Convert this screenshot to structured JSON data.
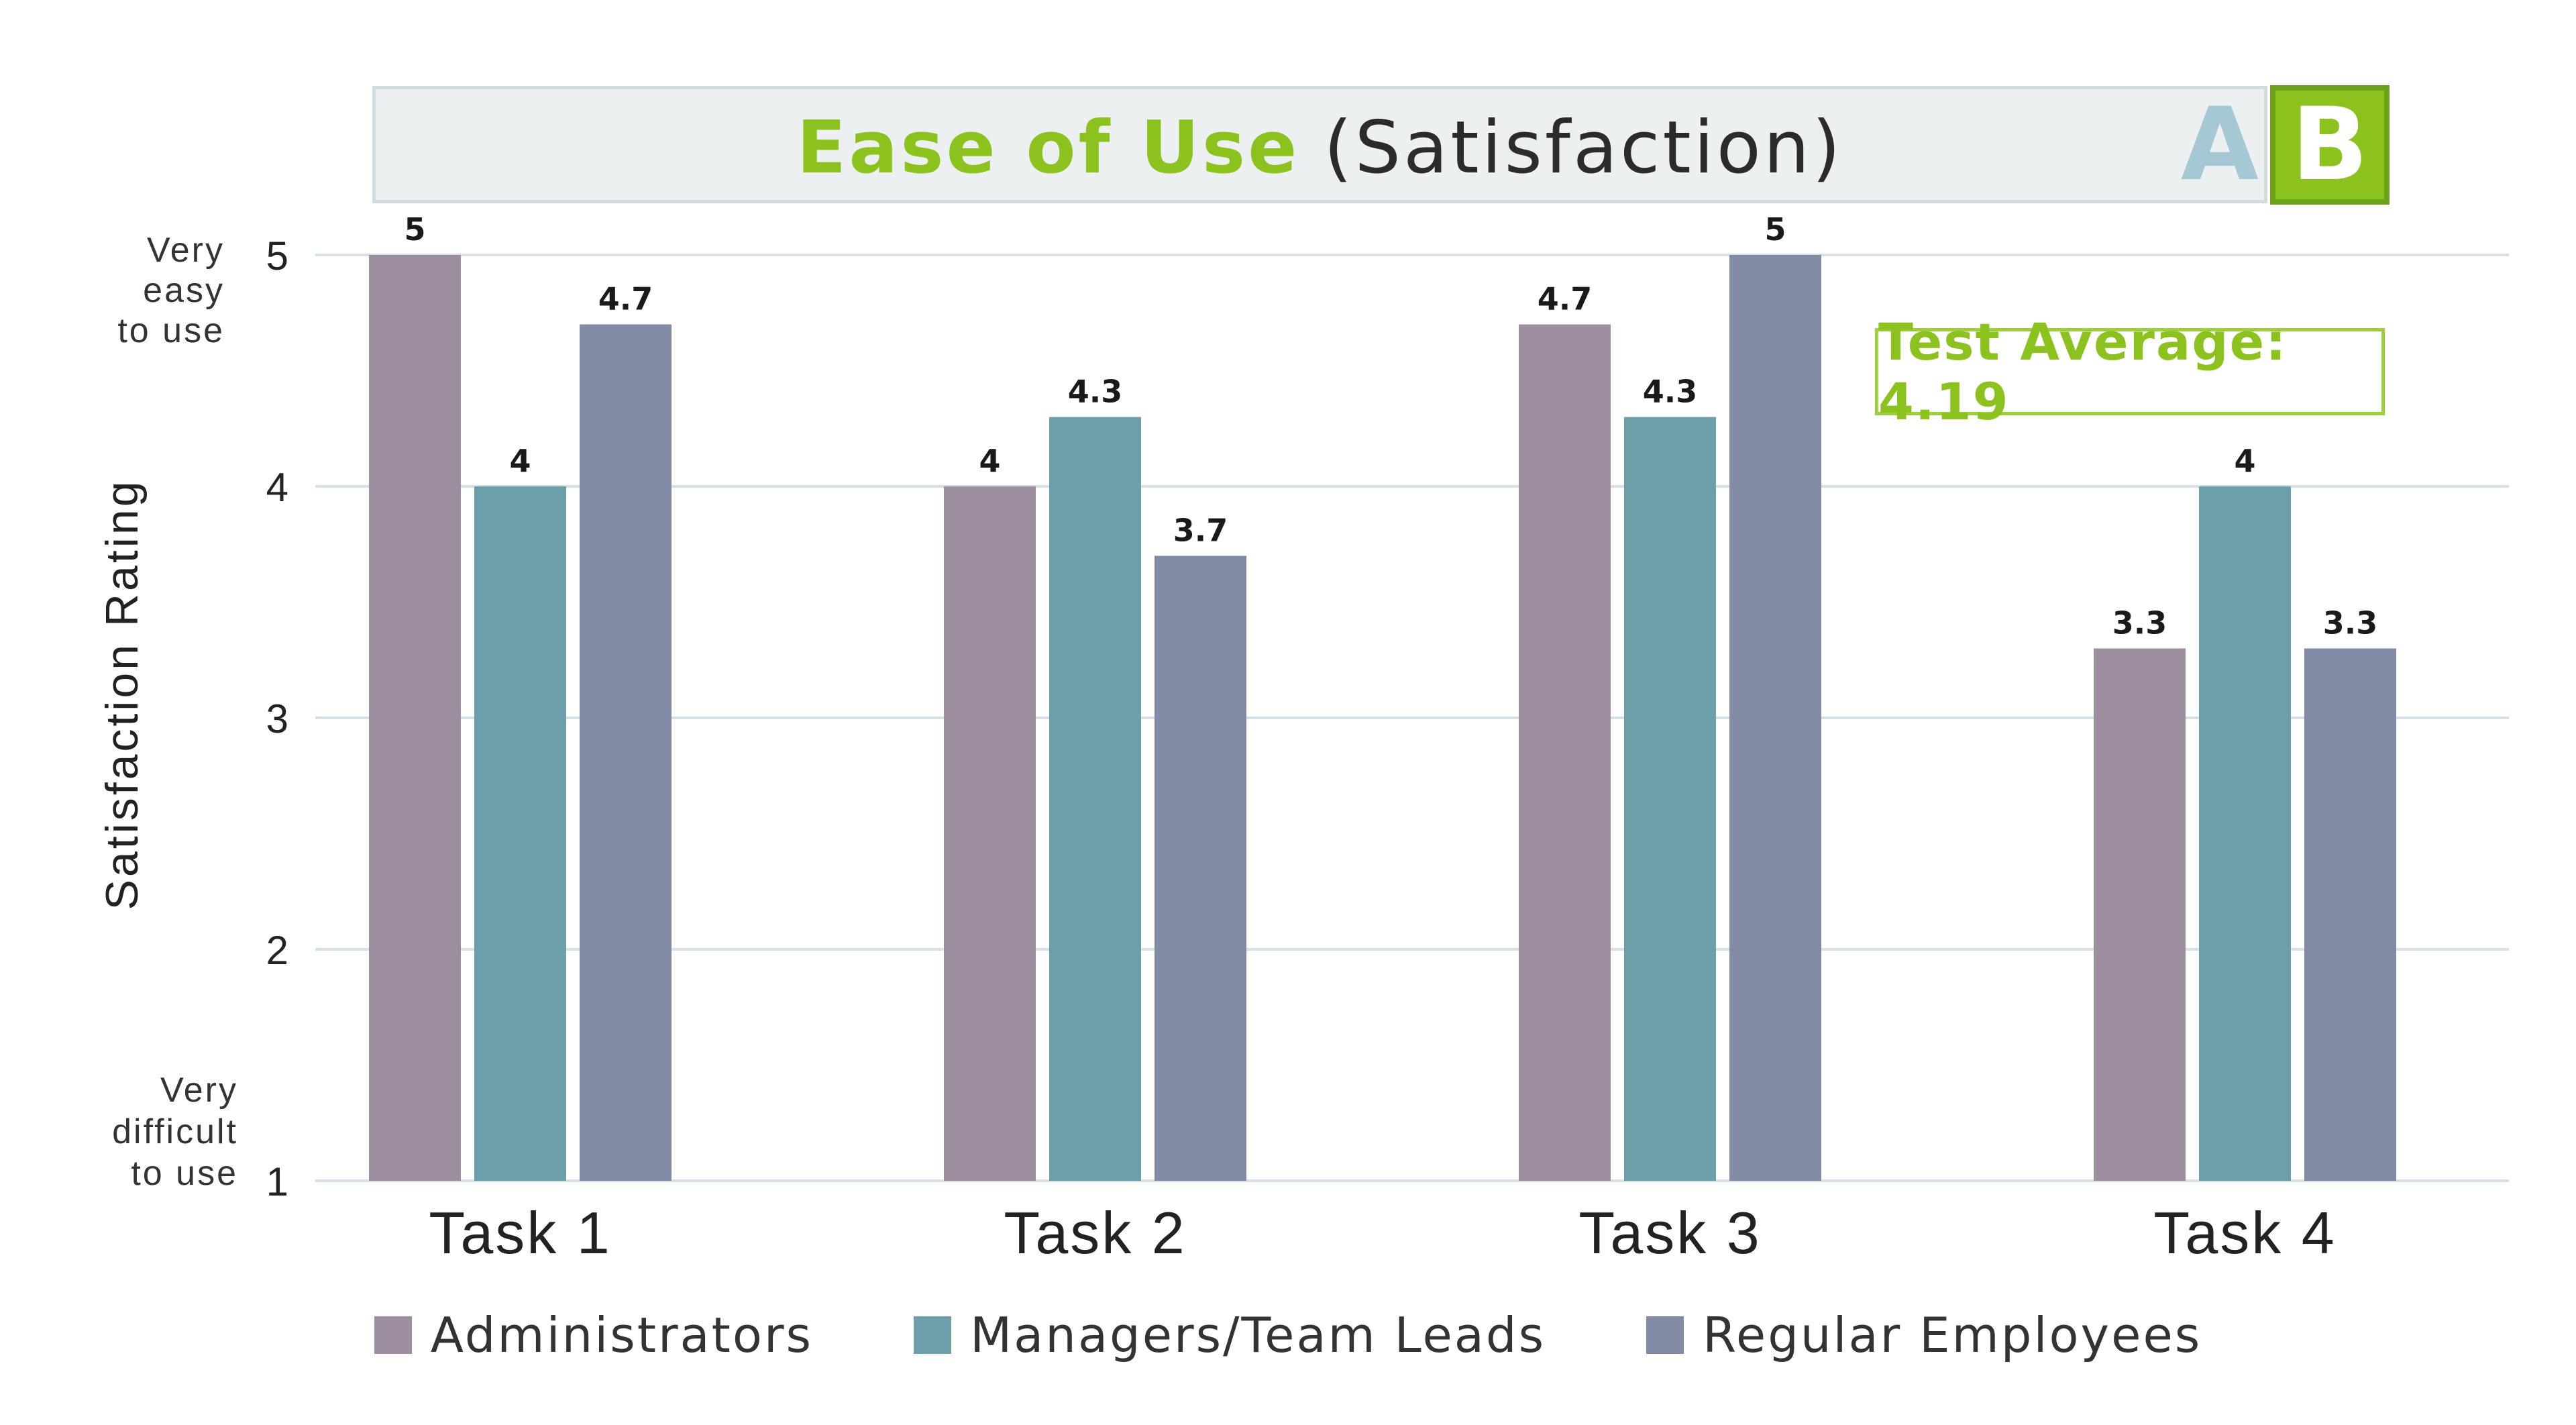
{
  "chart_data": {
    "type": "bar",
    "title": "Ease of Use",
    "subtitle": "(Satisfaction)",
    "variant_labels": [
      "A",
      "B"
    ],
    "selected_variant": "B",
    "annotation": "Test Average: 4.19",
    "ylabel": "Satisfaction Rating",
    "ylim": [
      1,
      5
    ],
    "yticks": [
      "1",
      "2",
      "3",
      "4",
      "5"
    ],
    "y_top_caption": [
      "Very",
      "easy",
      "to use"
    ],
    "y_bottom_caption": [
      "Very",
      "difficult",
      "to use"
    ],
    "grid": true,
    "legend_position": "bottom",
    "categories": [
      "Task 1",
      "Task 2",
      "Task 3",
      "Task 4"
    ],
    "series": [
      {
        "name": "Administrators",
        "color": "#9d8f9f",
        "values": [
          5,
          4,
          4.7,
          3.3
        ],
        "labels": [
          "5",
          "4",
          "4.7",
          "3.3"
        ]
      },
      {
        "name": "Managers/Team Leads",
        "color": "#6d9faa",
        "values": [
          4,
          4.3,
          4.3,
          4
        ],
        "labels": [
          "4",
          "4.3",
          "4.3",
          "4"
        ]
      },
      {
        "name": "Regular Employees",
        "color": "#828ba5",
        "values": [
          4.7,
          3.7,
          5,
          3.3
        ],
        "labels": [
          "4.7",
          "3.7",
          "5",
          "3.3"
        ]
      }
    ]
  }
}
